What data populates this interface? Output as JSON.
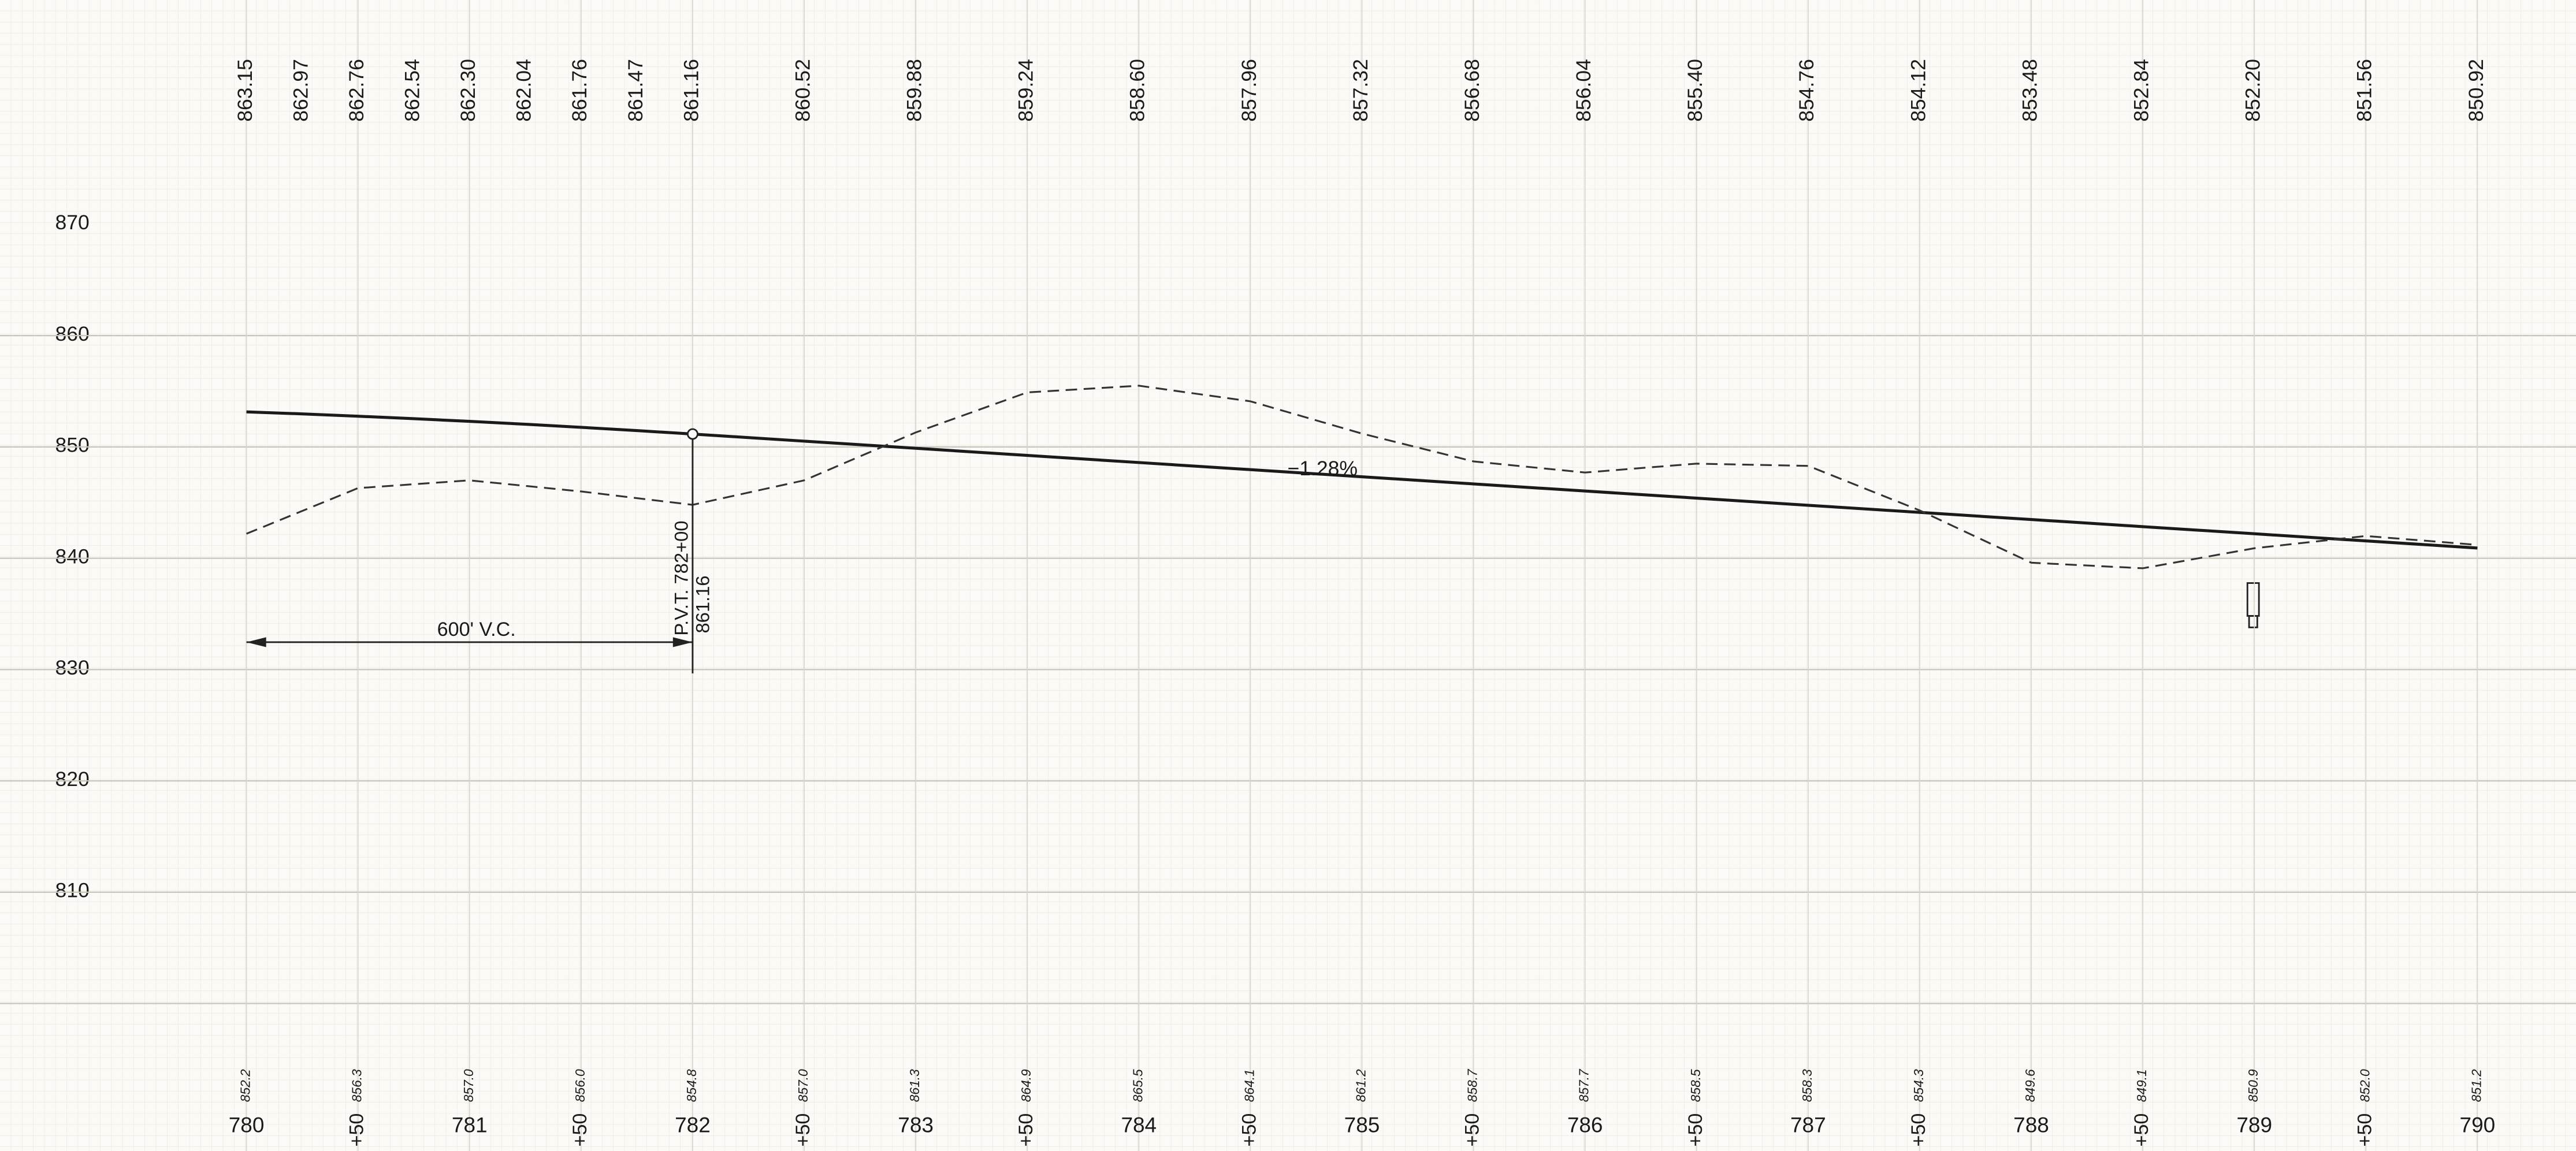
{
  "chart_data": {
    "type": "line",
    "xlim": [
      780,
      790
    ],
    "ylim": [
      800,
      900
    ],
    "yticks": [
      810,
      820,
      830,
      840,
      850,
      860,
      870
    ],
    "xticks": [
      780,
      {
        "value": 780.5,
        "label": "+50"
      },
      781,
      {
        "value": 781.5,
        "label": "+50"
      },
      782,
      {
        "value": 782.5,
        "label": "+50"
      },
      783,
      {
        "value": 783.5,
        "label": "+50"
      },
      784,
      {
        "value": 784.5,
        "label": "+50"
      },
      785,
      {
        "value": 785.5,
        "label": "+50"
      },
      786,
      {
        "value": 786.5,
        "label": "+50"
      },
      787,
      {
        "value": 787.5,
        "label": "+50"
      },
      788,
      {
        "value": 788.5,
        "label": "+50"
      },
      789,
      {
        "value": 789.5,
        "label": "+50"
      },
      790
    ],
    "grid": true,
    "series": [
      {
        "color": "#1a1a1a",
        "dashed": false,
        "label_row": "top",
        "x": [
          780,
          780.25,
          780.5,
          780.75,
          781,
          781.25,
          781.5,
          781.75,
          782,
          782.5,
          783,
          783.5,
          784,
          784.5,
          785,
          785.5,
          786,
          786.5,
          787,
          787.5,
          788,
          788.5,
          789,
          789.5,
          790
        ],
        "values": [
          863.15,
          862.97,
          862.76,
          862.54,
          862.3,
          862.04,
          861.76,
          861.47,
          861.16,
          860.52,
          859.88,
          859.24,
          858.6,
          857.96,
          857.32,
          856.68,
          856.04,
          855.4,
          854.76,
          854.12,
          853.48,
          852.84,
          852.2,
          851.56,
          850.92
        ],
        "value_labels": [
          "863.15",
          "862.97",
          "862.76",
          "862.54",
          "862.30",
          "862.04",
          "861.76",
          "861.47",
          "861.16",
          "860.52",
          "859.88",
          "859.24",
          "858.60",
          "857.96",
          "857.32",
          "856.68",
          "856.04",
          "855.40",
          "854.76",
          "854.12",
          "853.48",
          "852.84",
          "852.20",
          "851.56",
          "850.92"
        ]
      },
      {
        "color": "#333333",
        "dashed": true,
        "label_row": "bottom",
        "x": [
          780,
          780.5,
          781,
          781.5,
          782,
          782.5,
          783,
          783.5,
          784,
          784.5,
          785,
          785.5,
          786,
          786.5,
          787,
          787.5,
          788,
          788.5,
          789,
          789.5,
          790
        ],
        "values": [
          852.2,
          856.3,
          857,
          856,
          854.8,
          857,
          861.3,
          864.9,
          865.5,
          864.1,
          861.2,
          858.7,
          857.7,
          858.5,
          858.3,
          854.3,
          849.6,
          849.1,
          850.9,
          852,
          851.2
        ],
        "value_labels": [
          "852.2",
          "856.3",
          "857.0",
          "856.0",
          "854.8",
          "857.0",
          "861.3",
          "864.9",
          "865.5",
          "864.1",
          "861.2",
          "858.7",
          "857.7",
          "858.5",
          "858.3",
          "854.3",
          "849.6",
          "849.1",
          "850.9",
          "852.0",
          "851.2"
        ]
      }
    ],
    "annotations": [
      "−1.28%",
      "600' V.C.",
      "P.V.T. 782+00",
      "861.16"
    ]
  }
}
